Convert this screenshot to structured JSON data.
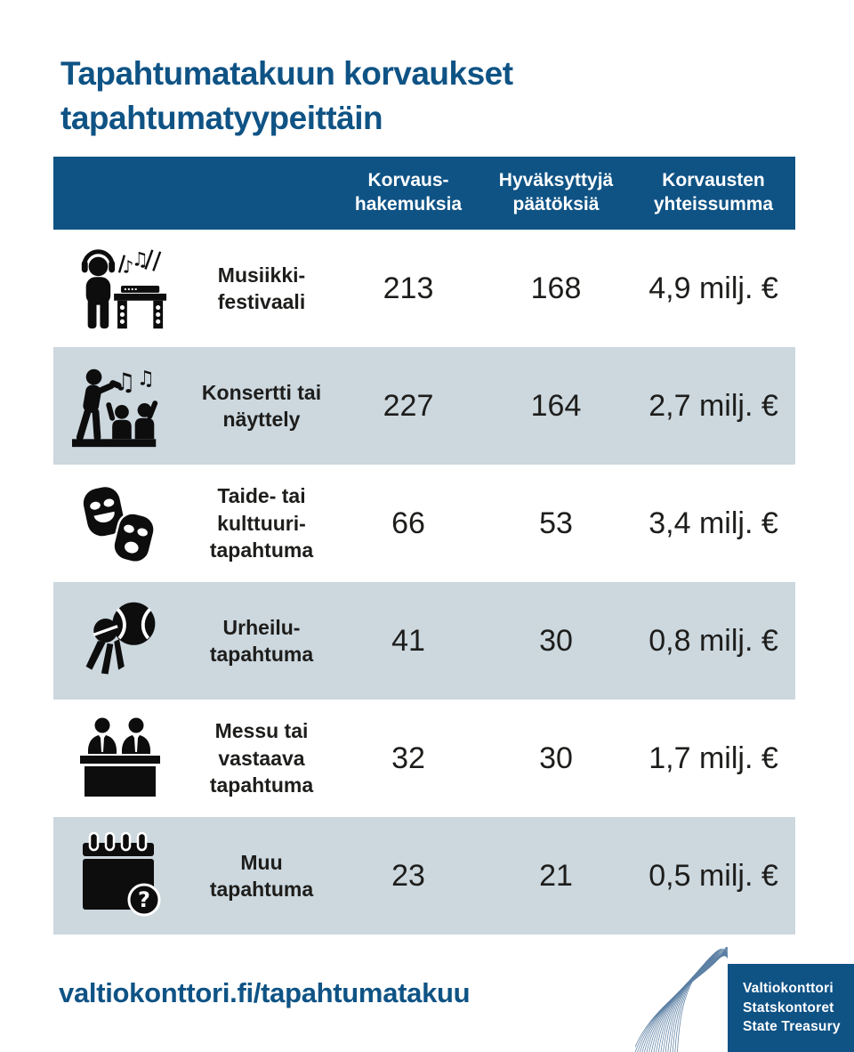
{
  "title": "Tapahtumatakuun korvaukset\ntapahtumatyypeittäin",
  "table": {
    "columns": [
      {
        "label": "Korvaus-\nhakemuksia"
      },
      {
        "label": "Hyväksyttyjä\npäätöksiä"
      },
      {
        "label": "Korvausten\nyhteissumma"
      }
    ],
    "rows": [
      {
        "icon": "dj-music-festival-icon",
        "label": "Musiikki-\nfestivaali",
        "applications": "213",
        "decisions": "168",
        "total": "4,9 milj. €"
      },
      {
        "icon": "concert-or-exhibition-icon",
        "label": "Konsertti tai\nnäyttely",
        "applications": "227",
        "decisions": "164",
        "total": "2,7 milj. €"
      },
      {
        "icon": "theater-masks-icon",
        "label": "Taide- tai\nkulttuuri-\ntapahtuma",
        "applications": "66",
        "decisions": "53",
        "total": "3,4 milj. €"
      },
      {
        "icon": "sports-equipment-icon",
        "label": "Urheilu-\ntapahtuma",
        "applications": "41",
        "decisions": "30",
        "total": "0,8 milj. €"
      },
      {
        "icon": "trade-fair-booth-icon",
        "label": "Messu tai\nvastaava\ntapahtuma",
        "applications": "32",
        "decisions": "30",
        "total": "1,7 milj. €"
      },
      {
        "icon": "calendar-question-icon",
        "label": "Muu\ntapahtuma",
        "applications": "23",
        "decisions": "21",
        "total": "0,5 milj. €"
      }
    ]
  },
  "chart_data": {
    "type": "table",
    "title": "Tapahtumatakuun korvaukset tapahtumatyypeittäin",
    "categories": [
      "Musiikkifestivaali",
      "Konsertti tai näyttely",
      "Taide- tai kulttuuritapahtuma",
      "Urheilutapahtuma",
      "Messu tai vastaava tapahtuma",
      "Muu tapahtuma"
    ],
    "series": [
      {
        "name": "Korvaushakemuksia",
        "values": [
          213,
          227,
          66,
          41,
          32,
          23
        ]
      },
      {
        "name": "Hyväksyttyjä päätöksiä",
        "values": [
          168,
          164,
          53,
          30,
          30,
          21
        ]
      },
      {
        "name": "Korvausten yhteissumma (milj. €)",
        "values": [
          4.9,
          2.7,
          3.4,
          0.8,
          1.7,
          0.5
        ]
      }
    ]
  },
  "footer": {
    "link": "valtiokonttori.fi/tapahtumatakuu",
    "logo": {
      "line1": "Valtiokonttori",
      "line2": "Statskontoret",
      "line3": "State Treasury"
    }
  },
  "icons": {
    "question_glyph": "?",
    "note_glyph": "♪",
    "beamed_note_glyph": "♫"
  },
  "colors": {
    "brand_blue": "#0F5385",
    "row_alt_bg": "#CCD7DE",
    "ink": "#1D1D1B",
    "wave_line": "#5B7FA3"
  }
}
